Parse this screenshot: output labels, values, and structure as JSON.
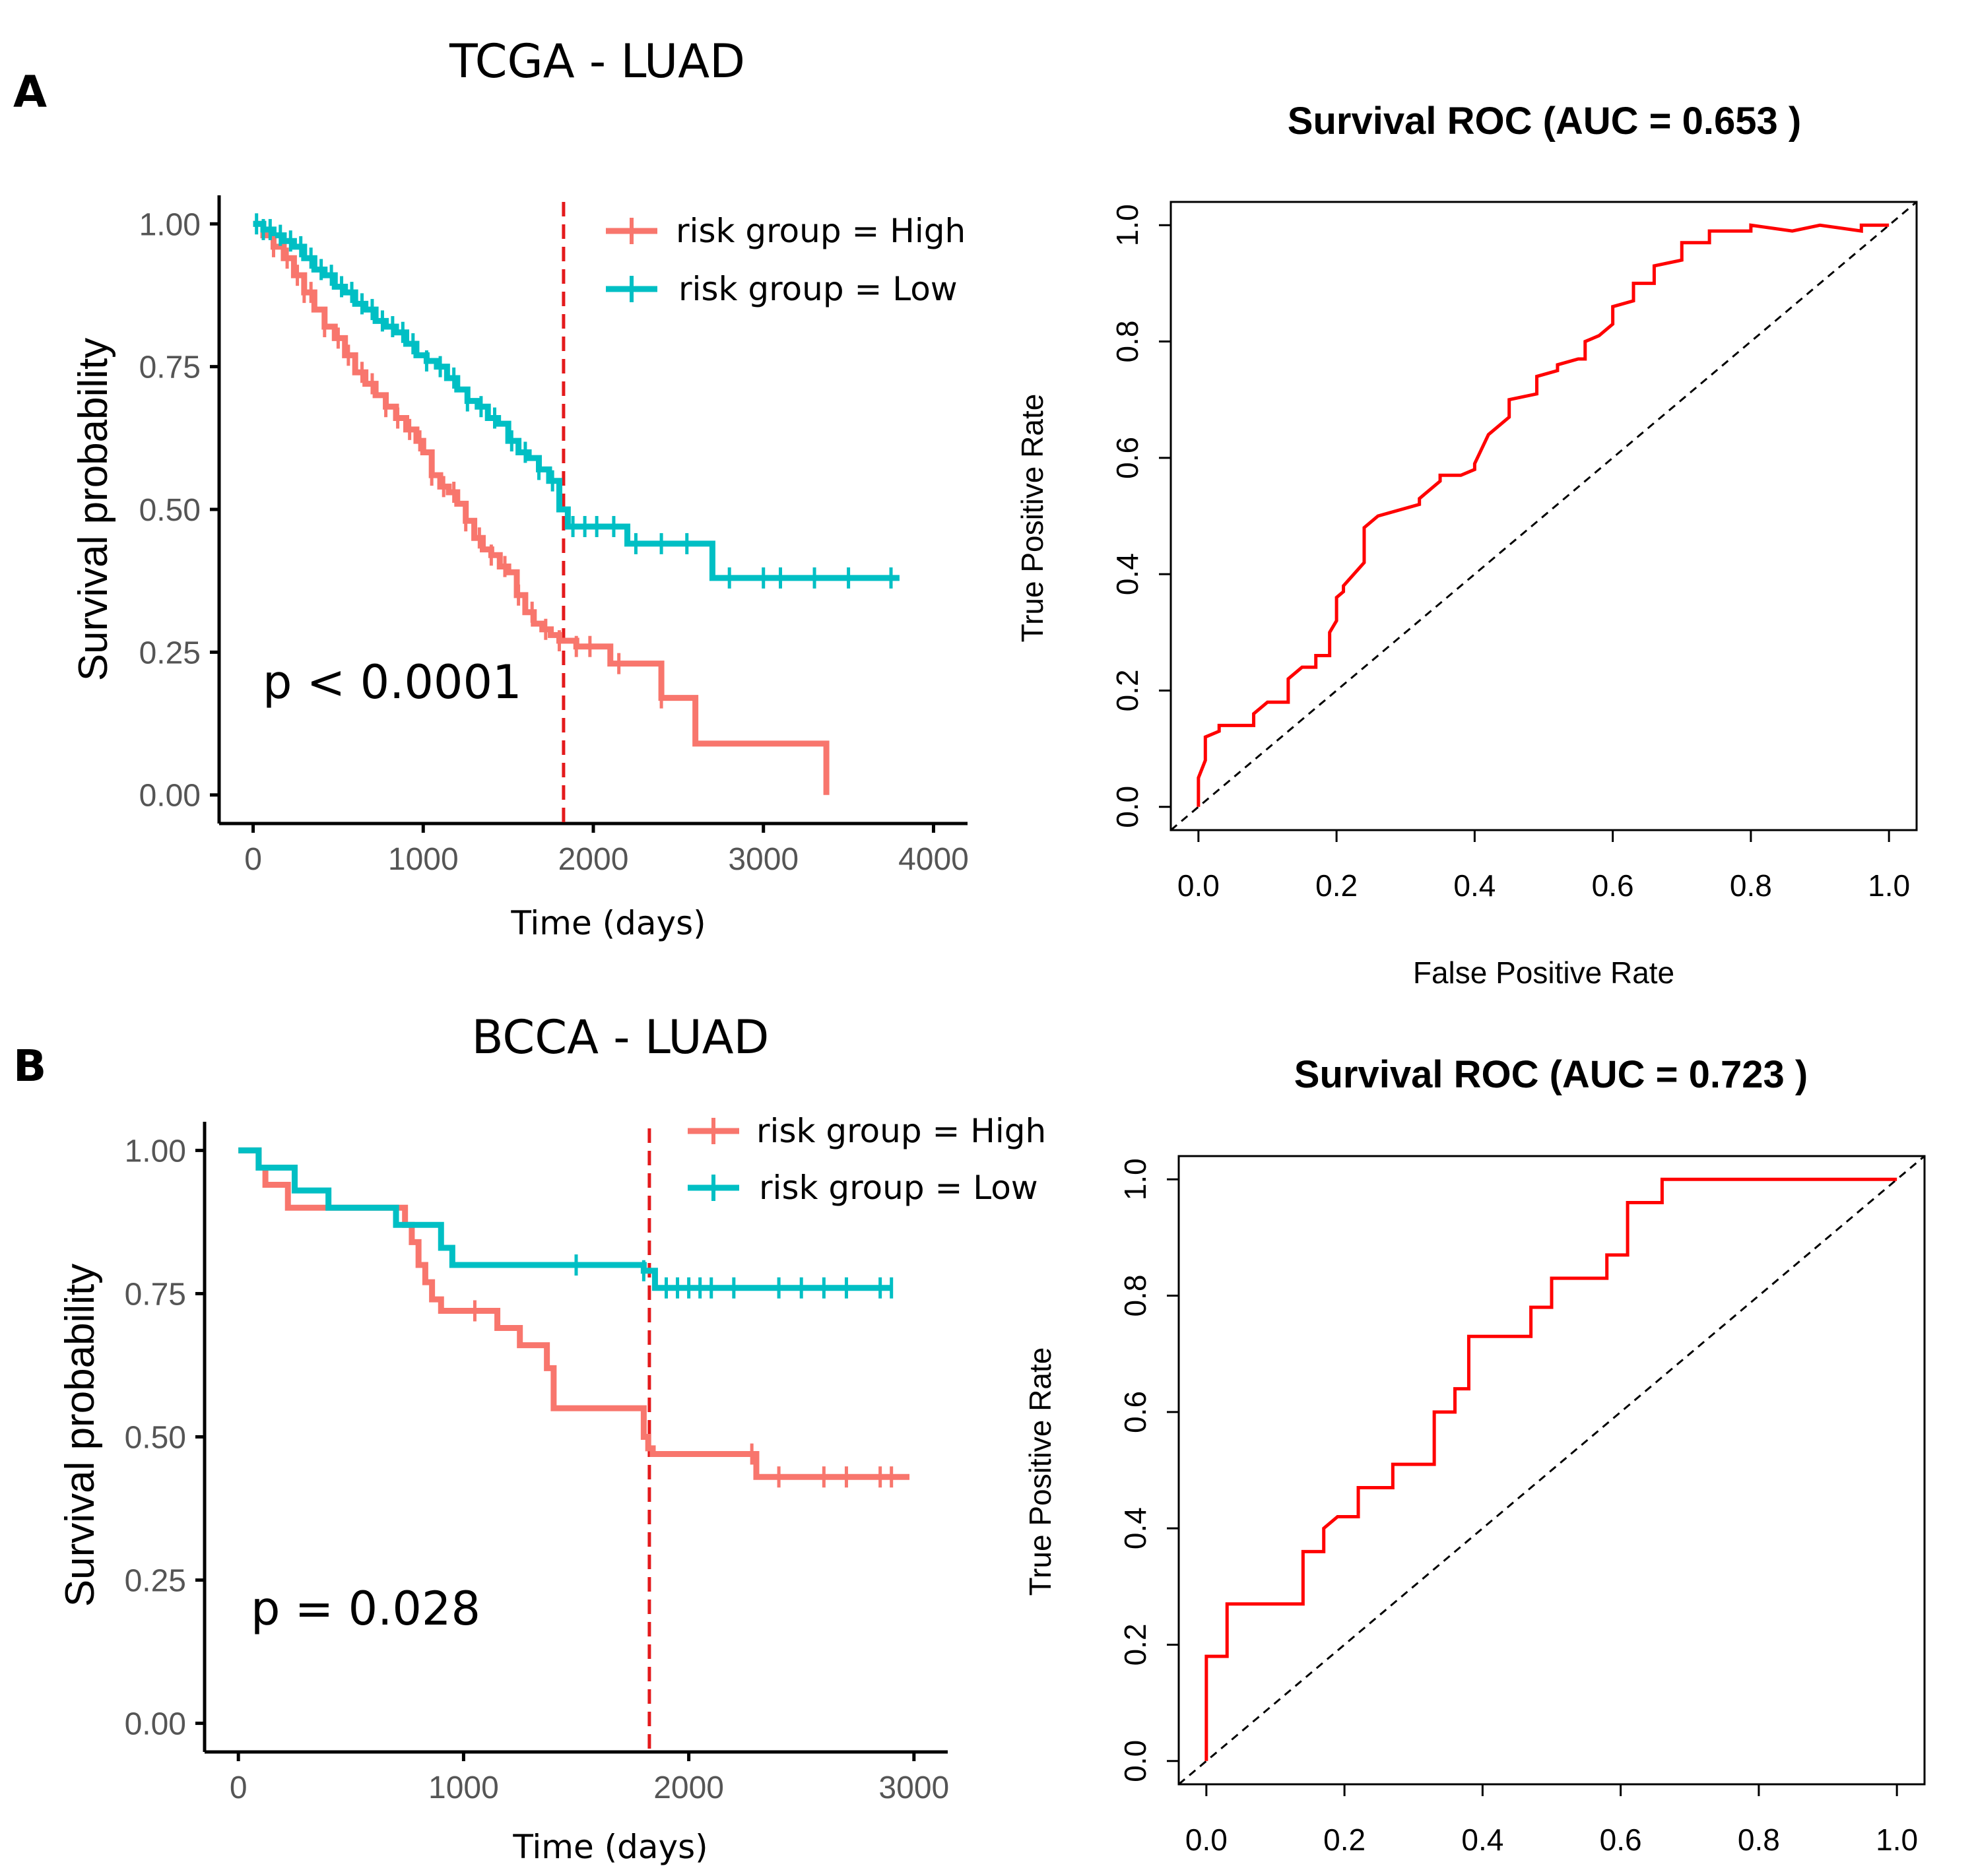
{
  "panels": [
    {
      "letter": "A",
      "km_title": "TCGA - LUAD",
      "roc_title": "Survival ROC (AUC = 0.653 )"
    },
    {
      "letter": "B",
      "km_title": "BCCA - LUAD",
      "roc_title": "Survival ROC (AUC = 0.723 )"
    }
  ],
  "colors": {
    "high": "#F8766D",
    "low": "#00BFC4",
    "roc": "#FF0000",
    "cutoff": "#E41A1C",
    "diag": "#000000"
  },
  "chart_data": [
    {
      "type": "line",
      "title": "TCGA - LUAD",
      "xlabel": "Time (days)",
      "ylabel": "Survival probability",
      "xlim": [
        -200,
        4200
      ],
      "ylim": [
        -0.05,
        1.05
      ],
      "xticks": [
        0,
        1000,
        2000,
        3000,
        4000
      ],
      "yticks": [
        0,
        0.25,
        0.5,
        0.75,
        1.0
      ],
      "ytick_labels": [
        "0.00",
        "0.25",
        "0.50",
        "0.75",
        "1.00"
      ],
      "cutoff_x": 1825,
      "annotation": "p < 0.0001",
      "legend": {
        "placement": "top-right"
      },
      "series": [
        {
          "name": "risk group = High",
          "color": "#F8766D",
          "x": [
            0,
            60,
            120,
            180,
            240,
            300,
            360,
            420,
            480,
            540,
            600,
            660,
            720,
            780,
            840,
            900,
            960,
            1000,
            1050,
            1100,
            1150,
            1200,
            1250,
            1300,
            1350,
            1400,
            1450,
            1500,
            1550,
            1600,
            1650,
            1700,
            1750,
            1800,
            1900,
            2000,
            2100,
            2200,
            2300,
            2400,
            2500,
            2600,
            2700,
            2800,
            2900,
            3000,
            3100,
            3200,
            3300,
            3360,
            3370
          ],
          "y": [
            1.0,
            0.98,
            0.96,
            0.94,
            0.91,
            0.88,
            0.85,
            0.82,
            0.8,
            0.77,
            0.74,
            0.72,
            0.7,
            0.68,
            0.66,
            0.64,
            0.62,
            0.6,
            0.56,
            0.54,
            0.53,
            0.51,
            0.48,
            0.45,
            0.43,
            0.42,
            0.4,
            0.39,
            0.35,
            0.32,
            0.3,
            0.29,
            0.28,
            0.27,
            0.26,
            0.26,
            0.23,
            0.23,
            0.23,
            0.17,
            0.17,
            0.09,
            0.09,
            0.09,
            0.09,
            0.09,
            0.09,
            0.09,
            0.09,
            0.09,
            0.0
          ],
          "censor_x": [
            120,
            200,
            260,
            300,
            340,
            420,
            500,
            560,
            640,
            700,
            780,
            850,
            920,
            980,
            1050,
            1120,
            1180,
            1250,
            1330,
            1400,
            1480,
            1560,
            1640,
            1720,
            1800,
            1900,
            1980,
            2150,
            2400
          ]
        },
        {
          "name": "risk group = Low",
          "color": "#00BFC4",
          "x": [
            0,
            60,
            120,
            180,
            240,
            300,
            360,
            420,
            480,
            540,
            600,
            660,
            720,
            780,
            840,
            900,
            960,
            1020,
            1080,
            1140,
            1200,
            1260,
            1320,
            1380,
            1440,
            1500,
            1560,
            1620,
            1680,
            1740,
            1800,
            1850,
            1900,
            2000,
            2100,
            2200,
            2300,
            2400,
            2500,
            2600,
            2700,
            2800,
            3000,
            3200,
            3400,
            3600,
            3800
          ],
          "y": [
            1.0,
            0.99,
            0.98,
            0.97,
            0.96,
            0.94,
            0.92,
            0.91,
            0.89,
            0.88,
            0.86,
            0.85,
            0.83,
            0.82,
            0.81,
            0.79,
            0.77,
            0.76,
            0.75,
            0.73,
            0.71,
            0.69,
            0.68,
            0.66,
            0.65,
            0.62,
            0.6,
            0.59,
            0.57,
            0.55,
            0.5,
            0.47,
            0.47,
            0.47,
            0.47,
            0.44,
            0.44,
            0.44,
            0.44,
            0.44,
            0.38,
            0.38,
            0.38,
            0.38,
            0.38,
            0.38,
            0.38
          ],
          "censor_x": [
            20,
            60,
            100,
            160,
            220,
            280,
            340,
            400,
            460,
            520,
            580,
            640,
            700,
            760,
            820,
            880,
            940,
            1020,
            1100,
            1180,
            1260,
            1340,
            1420,
            1520,
            1600,
            1680,
            1760,
            1880,
            1950,
            2020,
            2120,
            2250,
            2400,
            2550,
            2800,
            3000,
            3100,
            3300,
            3500,
            3750
          ]
        }
      ]
    },
    {
      "type": "line",
      "title": "Survival ROC (AUC = 0.653 )",
      "xlabel": "False Positive Rate",
      "ylabel": "True Positive Rate",
      "xlim": [
        -0.04,
        1.04
      ],
      "ylim": [
        -0.04,
        1.04
      ],
      "xticks": [
        0.0,
        0.2,
        0.4,
        0.6,
        0.8,
        1.0
      ],
      "yticks": [
        0.0,
        0.2,
        0.4,
        0.6,
        0.8,
        1.0
      ],
      "tick_labels": [
        "0.0",
        "0.2",
        "0.4",
        "0.6",
        "0.8",
        "1.0"
      ],
      "series": [
        {
          "name": "",
          "color": "#FF0000",
          "x": [
            0.0,
            0.0,
            0.01,
            0.01,
            0.03,
            0.03,
            0.08,
            0.08,
            0.1,
            0.13,
            0.13,
            0.15,
            0.17,
            0.17,
            0.19,
            0.19,
            0.2,
            0.2,
            0.21,
            0.21,
            0.24,
            0.24,
            0.26,
            0.32,
            0.32,
            0.35,
            0.35,
            0.38,
            0.4,
            0.4,
            0.42,
            0.45,
            0.45,
            0.49,
            0.49,
            0.52,
            0.52,
            0.55,
            0.56,
            0.56,
            0.58,
            0.6,
            0.6,
            0.63,
            0.63,
            0.66,
            0.66,
            0.7,
            0.7,
            0.74,
            0.74,
            0.8,
            0.8,
            0.86,
            0.9,
            0.96,
            0.96,
            1.0
          ],
          "y": [
            0.0,
            0.05,
            0.08,
            0.12,
            0.13,
            0.14,
            0.14,
            0.16,
            0.18,
            0.18,
            0.22,
            0.24,
            0.24,
            0.26,
            0.26,
            0.3,
            0.32,
            0.36,
            0.37,
            0.38,
            0.42,
            0.48,
            0.5,
            0.52,
            0.53,
            0.56,
            0.57,
            0.57,
            0.58,
            0.59,
            0.64,
            0.67,
            0.7,
            0.71,
            0.74,
            0.75,
            0.76,
            0.77,
            0.77,
            0.8,
            0.81,
            0.83,
            0.86,
            0.87,
            0.9,
            0.9,
            0.93,
            0.94,
            0.97,
            0.97,
            0.99,
            0.99,
            1.0,
            0.99,
            1.0,
            0.99,
            1.0,
            1.0
          ]
        }
      ]
    },
    {
      "type": "line",
      "title": "BCCA - LUAD",
      "xlabel": "Time (days)",
      "ylabel": "Survival probability",
      "xlim": [
        -150,
        3150
      ],
      "ylim": [
        -0.05,
        1.05
      ],
      "xticks": [
        0,
        1000,
        2000,
        3000
      ],
      "yticks": [
        0,
        0.25,
        0.5,
        0.75,
        1.0
      ],
      "ytick_labels": [
        "0.00",
        "0.25",
        "0.50",
        "0.75",
        "1.00"
      ],
      "cutoff_x": 1825,
      "annotation": "p = 0.028",
      "legend": {
        "placement": "top-right"
      },
      "series": [
        {
          "name": "risk group = High",
          "color": "#F8766D",
          "x": [
            0,
            90,
            120,
            220,
            700,
            740,
            770,
            800,
            830,
            860,
            900,
            1120,
            1150,
            1250,
            1370,
            1400,
            1500,
            1800,
            1820,
            1840,
            2260,
            2300,
            2980
          ],
          "y": [
            1.0,
            0.97,
            0.94,
            0.9,
            0.9,
            0.87,
            0.84,
            0.8,
            0.77,
            0.74,
            0.72,
            0.72,
            0.69,
            0.66,
            0.62,
            0.55,
            0.55,
            0.5,
            0.48,
            0.47,
            0.47,
            0.43,
            0.43
          ],
          "censor_x": [
            1050,
            2280,
            2400,
            2600,
            2700,
            2850,
            2900
          ]
        },
        {
          "name": "risk group = Low",
          "color": "#00BFC4",
          "x": [
            0,
            90,
            250,
            400,
            700,
            900,
            950,
            1000,
            1800,
            1850,
            2900
          ],
          "y": [
            1.0,
            0.97,
            0.93,
            0.9,
            0.87,
            0.83,
            0.8,
            0.8,
            0.79,
            0.76,
            0.76
          ],
          "censor_x": [
            1500,
            1800,
            1900,
            1950,
            2000,
            2050,
            2100,
            2200,
            2400,
            2500,
            2600,
            2700,
            2850,
            2900
          ]
        }
      ]
    },
    {
      "type": "line",
      "title": "Survival ROC (AUC = 0.723 )",
      "xlabel": "",
      "ylabel": "True Positive Rate",
      "xlim": [
        -0.04,
        1.04
      ],
      "ylim": [
        -0.04,
        1.04
      ],
      "xticks": [
        0.0,
        0.2,
        0.4,
        0.6,
        0.8,
        1.0
      ],
      "yticks": [
        0.0,
        0.2,
        0.4,
        0.6,
        0.8,
        1.0
      ],
      "tick_labels": [
        "0.0",
        "0.2",
        "0.4",
        "0.6",
        "0.8",
        "1.0"
      ],
      "series": [
        {
          "name": "",
          "color": "#FF0000",
          "x": [
            0.0,
            0.0,
            0.03,
            0.03,
            0.14,
            0.14,
            0.17,
            0.17,
            0.19,
            0.19,
            0.22,
            0.22,
            0.27,
            0.27,
            0.33,
            0.33,
            0.36,
            0.36,
            0.38,
            0.38,
            0.47,
            0.47,
            0.5,
            0.5,
            0.58,
            0.58,
            0.61,
            0.61,
            0.66,
            0.66,
            0.75,
            1.0
          ],
          "y": [
            0.0,
            0.18,
            0.18,
            0.27,
            0.27,
            0.36,
            0.36,
            0.4,
            0.42,
            0.42,
            0.42,
            0.47,
            0.47,
            0.51,
            0.51,
            0.6,
            0.6,
            0.64,
            0.64,
            0.73,
            0.73,
            0.78,
            0.78,
            0.83,
            0.83,
            0.87,
            0.87,
            0.96,
            0.96,
            1.0,
            1.0,
            1.0
          ]
        }
      ]
    }
  ]
}
